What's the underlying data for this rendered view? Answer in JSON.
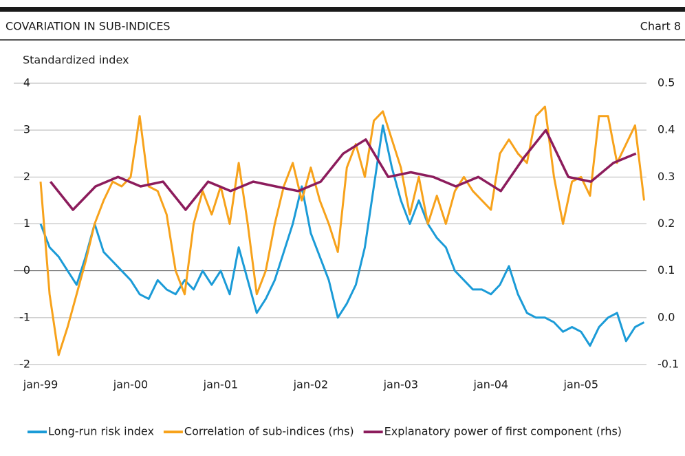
{
  "chart_data": {
    "type": "line",
    "title": "COVARIATION IN SUB-INDICES",
    "chart_label": "Chart 8",
    "ylabel": "Standardized index",
    "xlim": [
      1999,
      2005.75
    ],
    "xticks": [
      {
        "value": 1999,
        "label": "jan-99"
      },
      {
        "value": 2000,
        "label": "jan-00"
      },
      {
        "value": 2001,
        "label": "jan-01"
      },
      {
        "value": 2002,
        "label": "jan-02"
      },
      {
        "value": 2003,
        "label": "jan-03"
      },
      {
        "value": 2004,
        "label": "jan-04"
      },
      {
        "value": 2005,
        "label": "jan-05"
      }
    ],
    "ylim": [
      -2,
      4
    ],
    "yticks": [
      -2,
      -1,
      0,
      1,
      2,
      3,
      4
    ],
    "y2lim": [
      -0.1,
      0.5
    ],
    "y2ticks": [
      -0.1,
      {
        "value": 0,
        "label": "0.0"
      },
      0.1,
      0.2,
      0.3,
      0.4,
      0.5
    ],
    "grid": true,
    "legend": "bottom",
    "x": [
      1999.0,
      1999.1,
      1999.2,
      1999.3,
      1999.4,
      1999.5,
      1999.6,
      1999.7,
      1999.8,
      1999.9,
      2000.0,
      2000.1,
      2000.2,
      2000.3,
      2000.4,
      2000.5,
      2000.6,
      2000.7,
      2000.8,
      2000.9,
      2001.0,
      2001.1,
      2001.2,
      2001.3,
      2001.4,
      2001.5,
      2001.6,
      2001.7,
      2001.8,
      2001.9,
      2002.0,
      2002.1,
      2002.2,
      2002.3,
      2002.4,
      2002.5,
      2002.6,
      2002.7,
      2002.8,
      2002.9,
      2003.0,
      2003.1,
      2003.2,
      2003.3,
      2003.4,
      2003.5,
      2003.6,
      2003.7,
      2003.8,
      2003.9,
      2004.0,
      2004.1,
      2004.2,
      2004.3,
      2004.4,
      2004.5,
      2004.6,
      2004.7,
      2004.8,
      2004.9,
      2005.0,
      2005.1,
      2005.2,
      2005.3,
      2005.4,
      2005.5,
      2005.6,
      2005.7
    ],
    "series": [
      {
        "name": "Long-run risk index",
        "color": "#1b9bd7",
        "values": [
          1.0,
          0.5,
          0.3,
          0.0,
          -0.3,
          0.3,
          1.0,
          0.4,
          0.2,
          0.0,
          -0.2,
          -0.5,
          -0.6,
          -0.2,
          -0.4,
          -0.5,
          -0.2,
          -0.4,
          0.0,
          -0.3,
          0.0,
          -0.5,
          0.5,
          -0.2,
          -0.9,
          -0.6,
          -0.2,
          0.4,
          1.0,
          1.8,
          0.8,
          0.3,
          -0.2,
          -1.0,
          -0.7,
          -0.3,
          0.5,
          1.8,
          3.1,
          2.2,
          1.5,
          1.0,
          1.5,
          1.0,
          0.7,
          0.5,
          0.0,
          -0.2,
          -0.4,
          -0.4,
          -0.5,
          -0.3,
          0.1,
          -0.5,
          -0.9,
          -1.0,
          -1.0,
          -1.1,
          -1.3,
          -1.2,
          -1.3,
          -1.6,
          -1.2,
          -1.0,
          -0.9,
          -1.5,
          -1.2,
          -1.1
        ]
      },
      {
        "name": "Correlation of sub-indices (rhs)",
        "color": "#f7a21b",
        "axis": "y2",
        "values": [
          0.29,
          0.05,
          -0.08,
          -0.02,
          0.05,
          0.12,
          0.2,
          0.25,
          0.29,
          0.28,
          0.3,
          0.43,
          0.28,
          0.27,
          0.22,
          0.1,
          0.05,
          0.2,
          0.27,
          0.22,
          0.28,
          0.2,
          0.33,
          0.2,
          0.05,
          0.1,
          0.2,
          0.28,
          0.33,
          0.25,
          0.32,
          0.25,
          0.2,
          0.14,
          0.32,
          0.37,
          0.3,
          0.42,
          0.44,
          0.38,
          0.32,
          0.22,
          0.3,
          0.2,
          0.26,
          0.2,
          0.27,
          0.3,
          0.27,
          0.25,
          0.23,
          0.35,
          0.38,
          0.35,
          0.33,
          0.43,
          0.45,
          0.3,
          0.2,
          0.29,
          0.3,
          0.26,
          0.43,
          0.43,
          0.33,
          0.37,
          0.41,
          0.25
        ]
      },
      {
        "name": "Explanatory power of first component (rhs)",
        "color": "#8c1c5c",
        "axis": "y2",
        "x": [
          1999.11,
          1999.36,
          1999.61,
          1999.86,
          2000.11,
          2000.36,
          2000.61,
          2000.86,
          2001.11,
          2001.36,
          2001.61,
          2001.86,
          2002.11,
          2002.36,
          2002.61,
          2002.86,
          2003.11,
          2003.36,
          2003.61,
          2003.86,
          2004.11,
          2004.36,
          2004.61,
          2004.86,
          2005.11,
          2005.36,
          2005.61
        ],
        "values": [
          0.29,
          0.23,
          0.28,
          0.3,
          0.28,
          0.29,
          0.23,
          0.29,
          0.27,
          0.29,
          0.28,
          0.27,
          0.29,
          0.35,
          0.38,
          0.3,
          0.31,
          0.3,
          0.28,
          0.3,
          0.27,
          0.34,
          0.4,
          0.3,
          0.29,
          0.33,
          0.35
        ]
      }
    ]
  }
}
